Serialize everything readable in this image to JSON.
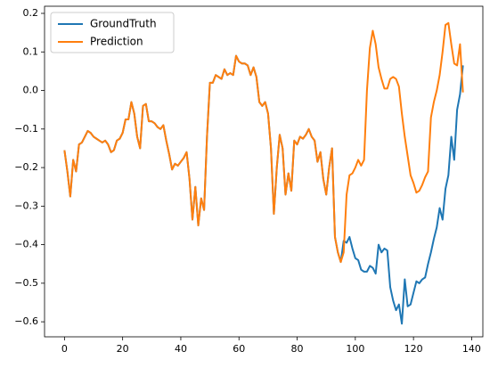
{
  "chart_data": {
    "type": "line",
    "x": [
      0,
      1,
      2,
      3,
      4,
      5,
      6,
      7,
      8,
      9,
      10,
      11,
      12,
      13,
      14,
      15,
      16,
      17,
      18,
      19,
      20,
      21,
      22,
      23,
      24,
      25,
      26,
      27,
      28,
      29,
      30,
      31,
      32,
      33,
      34,
      35,
      36,
      37,
      38,
      39,
      40,
      41,
      42,
      43,
      44,
      45,
      46,
      47,
      48,
      49,
      50,
      51,
      52,
      53,
      54,
      55,
      56,
      57,
      58,
      59,
      60,
      61,
      62,
      63,
      64,
      65,
      66,
      67,
      68,
      69,
      70,
      71,
      72,
      73,
      74,
      75,
      76,
      77,
      78,
      79,
      80,
      81,
      82,
      83,
      84,
      85,
      86,
      87,
      88,
      89,
      90,
      91,
      92,
      93,
      94,
      95,
      96,
      97,
      98,
      99,
      100,
      101,
      102,
      103,
      104,
      105,
      106,
      107,
      108,
      109,
      110,
      111,
      112,
      113,
      114,
      115,
      116,
      117,
      118,
      119,
      120,
      121,
      122,
      123,
      124,
      125,
      126,
      127,
      128,
      129,
      130,
      131,
      132,
      133,
      134,
      135,
      136,
      137
    ],
    "series": [
      {
        "name": "GroundTruth",
        "color": "#1f77b4",
        "values": [
          -0.155,
          -0.21,
          -0.275,
          -0.18,
          -0.21,
          -0.14,
          -0.135,
          -0.12,
          -0.105,
          -0.11,
          -0.12,
          -0.125,
          -0.13,
          -0.135,
          -0.13,
          -0.14,
          -0.16,
          -0.155,
          -0.13,
          -0.125,
          -0.11,
          -0.075,
          -0.075,
          -0.03,
          -0.06,
          -0.12,
          -0.15,
          -0.04,
          -0.035,
          -0.08,
          -0.08,
          -0.085,
          -0.095,
          -0.1,
          -0.09,
          -0.13,
          -0.165,
          -0.205,
          -0.19,
          -0.195,
          -0.185,
          -0.175,
          -0.16,
          -0.23,
          -0.335,
          -0.25,
          -0.35,
          -0.28,
          -0.31,
          -0.12,
          0.02,
          0.02,
          0.04,
          0.035,
          0.03,
          0.055,
          0.04,
          0.045,
          0.04,
          0.09,
          0.075,
          0.07,
          0.07,
          0.065,
          0.04,
          0.06,
          0.035,
          -0.03,
          -0.04,
          -0.03,
          -0.06,
          -0.15,
          -0.32,
          -0.2,
          -0.115,
          -0.15,
          -0.27,
          -0.215,
          -0.26,
          -0.13,
          -0.14,
          -0.12,
          -0.125,
          -0.115,
          -0.1,
          -0.12,
          -0.13,
          -0.185,
          -0.16,
          -0.23,
          -0.27,
          -0.2,
          -0.15,
          -0.38,
          -0.42,
          -0.445,
          -0.39,
          -0.395,
          -0.38,
          -0.41,
          -0.435,
          -0.44,
          -0.465,
          -0.47,
          -0.47,
          -0.455,
          -0.46,
          -0.475,
          -0.4,
          -0.42,
          -0.41,
          -0.415,
          -0.51,
          -0.545,
          -0.57,
          -0.555,
          -0.605,
          -0.49,
          -0.56,
          -0.555,
          -0.525,
          -0.495,
          -0.5,
          -0.49,
          -0.485,
          -0.45,
          -0.42,
          -0.385,
          -0.355,
          -0.305,
          -0.335,
          -0.255,
          -0.22,
          -0.12,
          -0.18,
          -0.05,
          -0.01,
          0.065
        ]
      },
      {
        "name": "Prediction",
        "color": "#ff7f0e",
        "values": [
          -0.155,
          -0.21,
          -0.275,
          -0.18,
          -0.21,
          -0.14,
          -0.135,
          -0.12,
          -0.105,
          -0.11,
          -0.12,
          -0.125,
          -0.13,
          -0.135,
          -0.13,
          -0.14,
          -0.16,
          -0.155,
          -0.13,
          -0.125,
          -0.11,
          -0.075,
          -0.075,
          -0.03,
          -0.06,
          -0.12,
          -0.15,
          -0.04,
          -0.035,
          -0.08,
          -0.08,
          -0.085,
          -0.095,
          -0.1,
          -0.09,
          -0.13,
          -0.165,
          -0.205,
          -0.19,
          -0.195,
          -0.185,
          -0.175,
          -0.16,
          -0.23,
          -0.335,
          -0.25,
          -0.35,
          -0.28,
          -0.31,
          -0.12,
          0.02,
          0.02,
          0.04,
          0.035,
          0.03,
          0.055,
          0.04,
          0.045,
          0.04,
          0.09,
          0.075,
          0.07,
          0.07,
          0.065,
          0.04,
          0.06,
          0.035,
          -0.03,
          -0.04,
          -0.03,
          -0.06,
          -0.15,
          -0.32,
          -0.2,
          -0.115,
          -0.15,
          -0.27,
          -0.215,
          -0.26,
          -0.13,
          -0.14,
          -0.12,
          -0.125,
          -0.115,
          -0.1,
          -0.12,
          -0.13,
          -0.185,
          -0.16,
          -0.23,
          -0.27,
          -0.2,
          -0.15,
          -0.38,
          -0.42,
          -0.445,
          -0.42,
          -0.27,
          -0.22,
          -0.215,
          -0.2,
          -0.18,
          -0.195,
          -0.18,
          0.0,
          0.11,
          0.155,
          0.12,
          0.06,
          0.03,
          0.005,
          0.005,
          0.03,
          0.035,
          0.03,
          0.01,
          -0.06,
          -0.12,
          -0.17,
          -0.22,
          -0.24,
          -0.265,
          -0.26,
          -0.245,
          -0.225,
          -0.21,
          -0.07,
          -0.03,
          0.0,
          0.04,
          0.1,
          0.17,
          0.175,
          0.12,
          0.07,
          0.065,
          0.12,
          -0.005
        ]
      }
    ],
    "xlim": [
      -6.85,
      143.85
    ],
    "xticks": [
      0,
      20,
      40,
      60,
      80,
      100,
      120,
      140
    ],
    "ylim": [
      -0.639,
      0.2185
    ],
    "yticks": [
      {
        "value": -0.6,
        "label": "−0.6"
      },
      {
        "value": -0.5,
        "label": "−0.5"
      },
      {
        "value": -0.4,
        "label": "−0.4"
      },
      {
        "value": -0.3,
        "label": "−0.3"
      },
      {
        "value": -0.2,
        "label": "−0.2"
      },
      {
        "value": -0.1,
        "label": "−0.1"
      },
      {
        "value": 0.0,
        "label": "0.0"
      },
      0.1,
      0.2
    ],
    "legend": "upper left"
  }
}
